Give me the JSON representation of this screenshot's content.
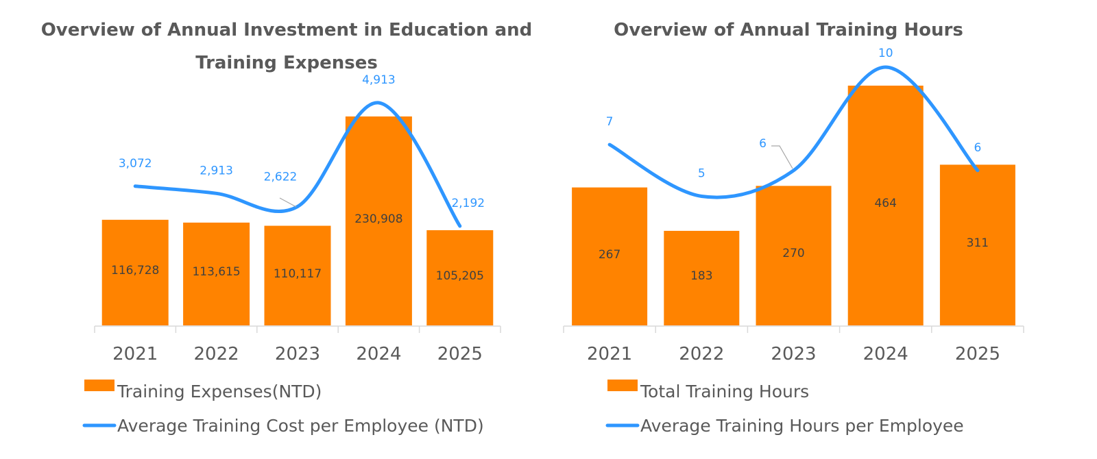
{
  "colors": {
    "bar": "#FF8300",
    "line": "#2E96FF",
    "axis": "#D9D9D9",
    "text": "#595959"
  },
  "chart_data": [
    {
      "type": "bar+line",
      "title_lines": [
        "Overview of Annual Investment in Education and",
        "Training Expenses"
      ],
      "categories": [
        "2021",
        "2022",
        "2023",
        "2024",
        "2025"
      ],
      "series": [
        {
          "name": "Training Expenses(NTD)",
          "type": "bar",
          "values": [
            116728,
            113615,
            110117,
            230908,
            105205
          ],
          "labels": [
            "116,728",
            "113,615",
            "110,117",
            "230,908",
            "105,205"
          ]
        },
        {
          "name": "Average Training Cost per Employee (NTD)",
          "type": "line",
          "smooth": true,
          "values": [
            3072,
            2913,
            2622,
            4913,
            2192
          ],
          "labels": [
            "3,072",
            "2,913",
            "2,622",
            "4,913",
            "2,192"
          ]
        }
      ],
      "legend": "bottom-left",
      "grid": false
    },
    {
      "type": "bar+line",
      "title_lines": [
        "Overview of Annual Training Hours"
      ],
      "categories": [
        "2021",
        "2022",
        "2023",
        "2024",
        "2025"
      ],
      "series": [
        {
          "name": "Total Training Hours",
          "type": "bar",
          "values": [
            267,
            183,
            270,
            464,
            311
          ],
          "labels": [
            "267",
            "183",
            "270",
            "464",
            "311"
          ]
        },
        {
          "name": "Average Training Hours per Employee",
          "type": "line",
          "smooth": true,
          "values": [
            7,
            5,
            6,
            10,
            6
          ],
          "labels": [
            "7",
            "5",
            "6",
            "10",
            "6"
          ]
        }
      ],
      "legend": "bottom-left",
      "grid": false
    }
  ]
}
